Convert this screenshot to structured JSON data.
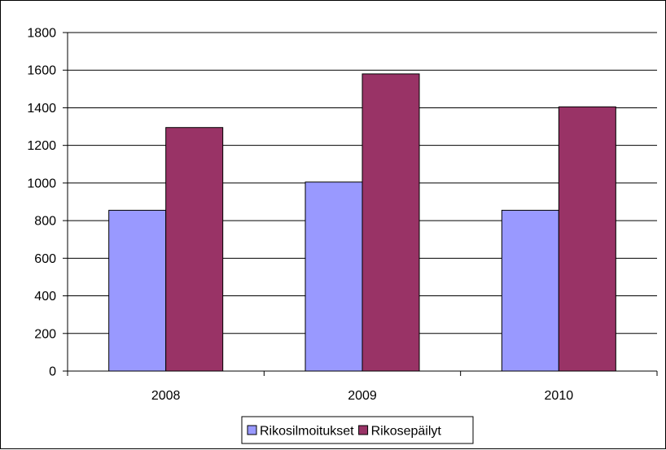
{
  "chart_data": {
    "type": "bar",
    "categories": [
      "2008",
      "2009",
      "2010"
    ],
    "series": [
      {
        "name": "Rikosilmoitukset",
        "values": [
          855,
          1005,
          855
        ],
        "color": "#9999ff"
      },
      {
        "name": "Rikosepäilyt",
        "values": [
          1295,
          1580,
          1405
        ],
        "color": "#993366"
      }
    ],
    "ylim": [
      0,
      1800
    ],
    "yticks": [
      "0",
      "200",
      "400",
      "600",
      "800",
      "1000",
      "1200",
      "1400",
      "1600",
      "1800"
    ],
    "grid": true,
    "legend_position": "bottom",
    "plot_background": "#ffffff",
    "gridline_color": "#000000"
  }
}
